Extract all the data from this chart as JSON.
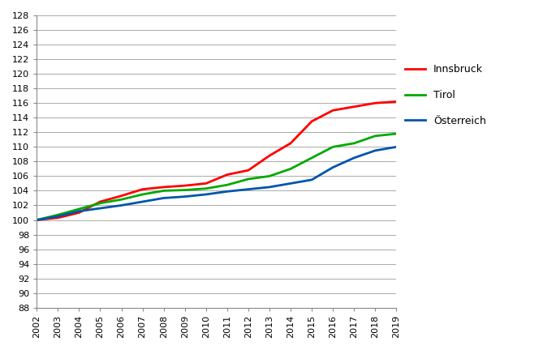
{
  "years": [
    2002,
    2003,
    2004,
    2005,
    2006,
    2007,
    2008,
    2009,
    2010,
    2011,
    2012,
    2013,
    2014,
    2015,
    2016,
    2017,
    2018,
    2019
  ],
  "innsbruck": [
    100.0,
    100.3,
    101.0,
    102.5,
    103.3,
    104.2,
    104.5,
    104.7,
    105.0,
    106.2,
    106.8,
    108.8,
    110.5,
    113.5,
    115.0,
    115.5,
    116.0,
    116.2
  ],
  "tirol": [
    100.0,
    100.7,
    101.5,
    102.3,
    102.8,
    103.5,
    104.0,
    104.1,
    104.3,
    104.8,
    105.6,
    106.0,
    107.0,
    108.5,
    110.0,
    110.5,
    111.5,
    111.8
  ],
  "oesterreich": [
    100.0,
    100.5,
    101.2,
    101.6,
    102.0,
    102.5,
    103.0,
    103.2,
    103.5,
    103.9,
    104.2,
    104.5,
    105.0,
    105.5,
    107.2,
    108.5,
    109.5,
    110.0
  ],
  "innsbruck_color": "#ff0000",
  "tirol_color": "#00aa00",
  "oesterreich_color": "#0055aa",
  "innsbruck_label": "Innsbruck",
  "tirol_label": "Tirol",
  "oesterreich_label": "Österreich",
  "ylim": [
    88,
    128
  ],
  "ytick_min": 88,
  "ytick_max": 128,
  "ytick_step": 2,
  "background_color": "#ffffff",
  "grid_color": "#aaaaaa",
  "line_width": 2.0,
  "legend_fontsize": 9,
  "tick_fontsize": 8
}
